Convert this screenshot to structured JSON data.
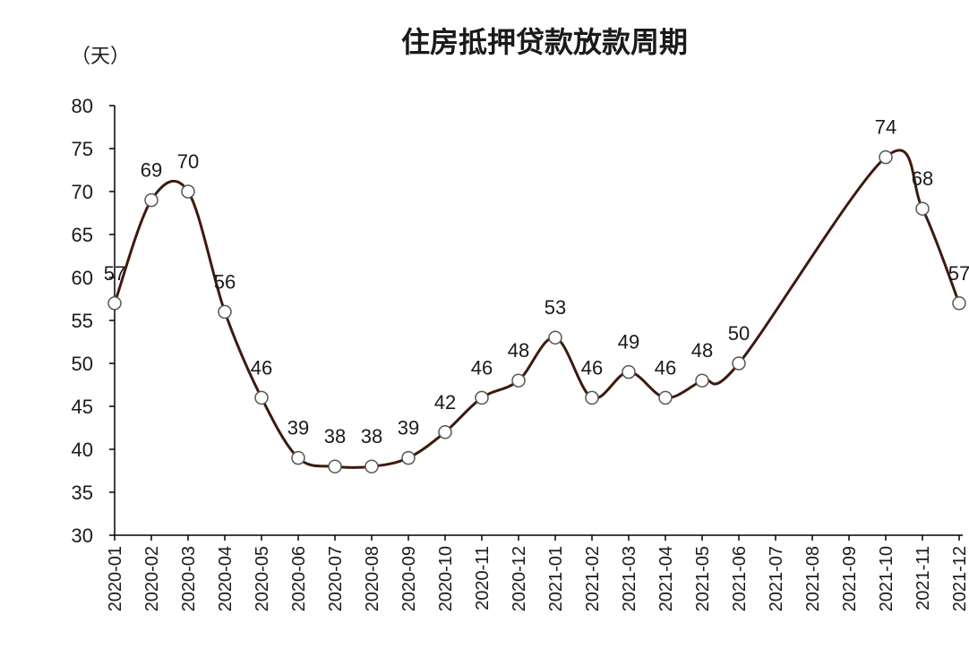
{
  "chart_data": {
    "type": "line",
    "title": "住房抵押贷款放款周期",
    "ylabel": "（天）",
    "xlabel": "",
    "ylim": [
      30,
      80
    ],
    "yticks": [
      30,
      35,
      40,
      45,
      50,
      55,
      60,
      65,
      70,
      75,
      80
    ],
    "categories": [
      "2020-01",
      "2020-02",
      "2020-03",
      "2020-04",
      "2020-05",
      "2020-06",
      "2020-07",
      "2020-08",
      "2020-09",
      "2020-10",
      "2020-11",
      "2020-12",
      "2021-01",
      "2021-02",
      "2021-03",
      "2021-04",
      "2021-05",
      "2021-06",
      "2021-07",
      "2021-08",
      "2021-09",
      "2021-10",
      "2021-11",
      "2021-12"
    ],
    "values": [
      57,
      69,
      70,
      56,
      46,
      39,
      38,
      38,
      39,
      42,
      46,
      48,
      53,
      46,
      49,
      46,
      48,
      50,
      null,
      null,
      null,
      74,
      68,
      57
    ],
    "grid": false,
    "colors": {
      "line": "#3d1a0e",
      "marker_fill": "#ffffff",
      "marker_stroke": "#555555",
      "axis": "#000000"
    }
  }
}
